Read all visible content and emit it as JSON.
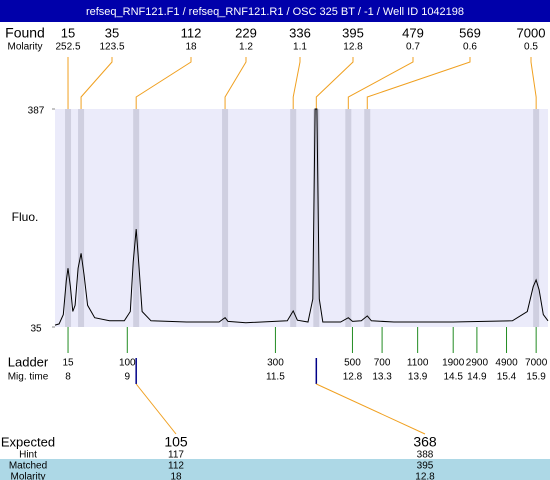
{
  "title": "refseq_RNF121.F1 / refseq_RNF121.R1 / OSC 325 BT / -1 / Well ID 1042198",
  "found": {
    "label": "Found",
    "molarity_label": "Molarity",
    "sizes": [
      15,
      35,
      112,
      229,
      336,
      395,
      479,
      569,
      7000
    ],
    "molarity": [
      252.5,
      123.5,
      18,
      1.2,
      1.1,
      12.8,
      0.7,
      0.6,
      0.5
    ],
    "migration": [
      8.0,
      8.22,
      9.15,
      10.65,
      11.8,
      12.19,
      12.73,
      13.05,
      15.9
    ]
  },
  "chart_data": {
    "type": "line",
    "y_label": "Fluo.",
    "ylim": [
      35,
      387
    ],
    "yticks": [
      35,
      387
    ],
    "xlim": [
      7.78,
      16.1
    ],
    "x": [
      7.78,
      7.85,
      7.92,
      7.97,
      8.0,
      8.04,
      8.08,
      8.12,
      8.17,
      8.22,
      8.27,
      8.33,
      8.45,
      8.7,
      8.95,
      9.05,
      9.1,
      9.15,
      9.2,
      9.25,
      9.4,
      10.0,
      10.55,
      10.62,
      10.65,
      10.7,
      11.0,
      11.7,
      11.8,
      11.87,
      12.05,
      12.13,
      12.17,
      12.2,
      12.24,
      12.3,
      12.6,
      12.73,
      12.8,
      12.95,
      13.05,
      13.12,
      13.5,
      14.5,
      15.5,
      15.75,
      15.85,
      15.9,
      15.95,
      16.02,
      16.1
    ],
    "series": [
      {
        "color": "#000000",
        "values": [
          38,
          40,
          55,
          110,
          130,
          100,
          60,
          70,
          130,
          154,
          120,
          70,
          50,
          45,
          45,
          60,
          140,
          193,
          130,
          60,
          45,
          43,
          43,
          48,
          50,
          44,
          42,
          45,
          61,
          46,
          43,
          80,
          387,
          387,
          80,
          43,
          43,
          50,
          44,
          45,
          53,
          45,
          43,
          43,
          45,
          60,
          100,
          111,
          95,
          55,
          45
        ]
      }
    ]
  },
  "ladder": {
    "label": "Ladder",
    "time_label": "Mig. time",
    "sizes": [
      15,
      100,
      300,
      500,
      700,
      1100,
      1900,
      2900,
      4900,
      7000
    ],
    "migration": [
      8,
      9,
      11.5,
      12.8,
      13.3,
      13.9,
      14.5,
      14.9,
      15.4,
      15.9
    ]
  },
  "expected": {
    "label": "Expected",
    "hint_label": "Hint",
    "matched_label": "Matched",
    "molarity_label": "Molarity",
    "values": [
      105,
      368
    ],
    "hint": [
      117,
      388
    ],
    "matched": [
      112,
      395
    ],
    "molarity": [
      18,
      12.8
    ]
  }
}
